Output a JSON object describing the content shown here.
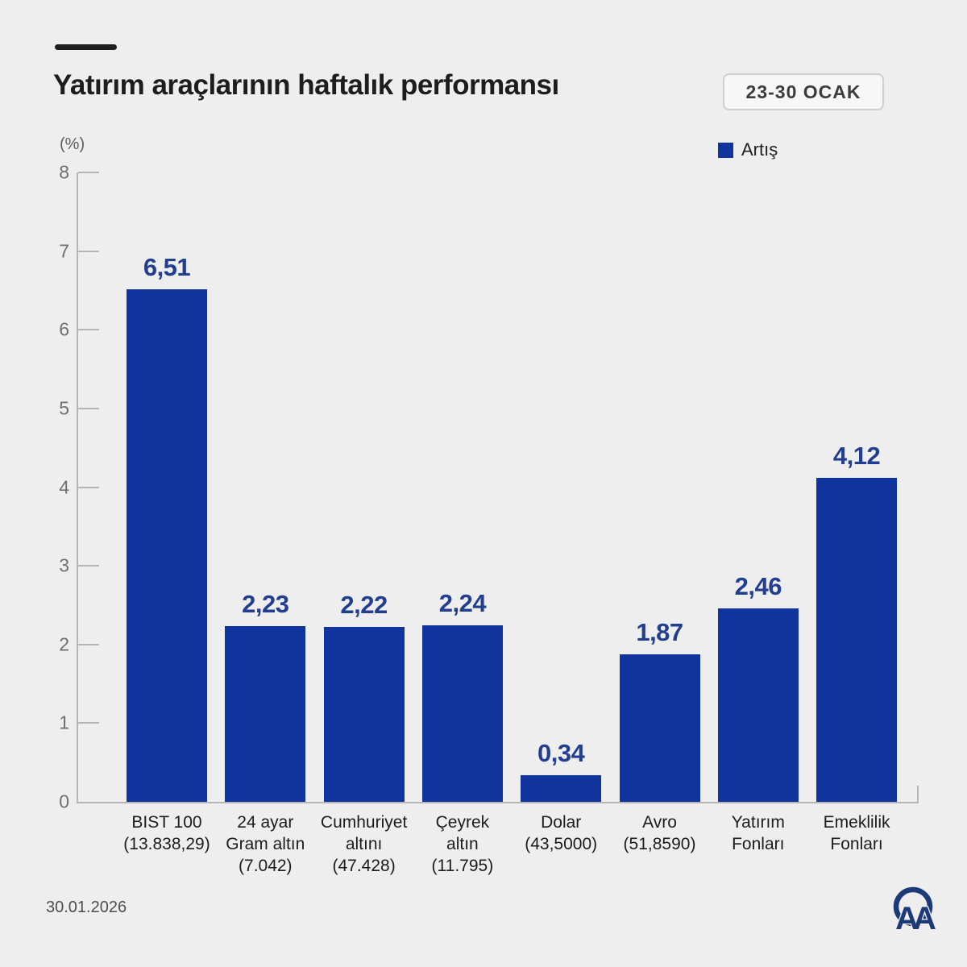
{
  "header": {
    "title": "Yatırım araçlarının haftalık performansı",
    "date_badge": "23-30 OCAK"
  },
  "legend": {
    "label": "Artış",
    "color": "#10349e"
  },
  "footer": {
    "date": "30.01.2026",
    "logo_text": "AA"
  },
  "chart_data": {
    "type": "bar",
    "title": "Yatırım araçlarının haftalık performansı",
    "subtitle": "23-30 OCAK",
    "ylabel": "(%)",
    "xlabel": "",
    "ylim": [
      0,
      8
    ],
    "yticks": [
      0,
      1,
      2,
      3,
      4,
      5,
      6,
      7,
      8
    ],
    "grid": false,
    "legend_position": "top-right",
    "bar_color": "#10349e",
    "value_label_color": "#223e8f",
    "categories": [
      "BIST 100 (13.838,29)",
      "24 ayar Gram altın (7.042)",
      "Cumhuriyet altını (47.428)",
      "Çeyrek altın (11.795)",
      "Dolar (43,5000)",
      "Avro (51,8590)",
      "Yatırım Fonları",
      "Emeklilik Fonları"
    ],
    "category_lines": [
      [
        "BIST 100",
        "(13.838,29)"
      ],
      [
        "24 ayar",
        "Gram altın",
        "(7.042)"
      ],
      [
        "Cumhuriyet",
        "altını",
        "(47.428)"
      ],
      [
        "Çeyrek",
        "altın",
        "(11.795)"
      ],
      [
        "Dolar",
        "(43,5000)"
      ],
      [
        "Avro",
        "(51,8590)"
      ],
      [
        "Yatırım",
        "Fonları"
      ],
      [
        "Emeklilik",
        "Fonları"
      ]
    ],
    "series": [
      {
        "name": "Artış",
        "values": [
          6.51,
          2.23,
          2.22,
          2.24,
          0.34,
          1.87,
          2.46,
          4.12
        ]
      }
    ],
    "value_labels": [
      "6,51",
      "2,23",
      "2,22",
      "2,24",
      "0,34",
      "1,87",
      "2,46",
      "4,12"
    ]
  }
}
